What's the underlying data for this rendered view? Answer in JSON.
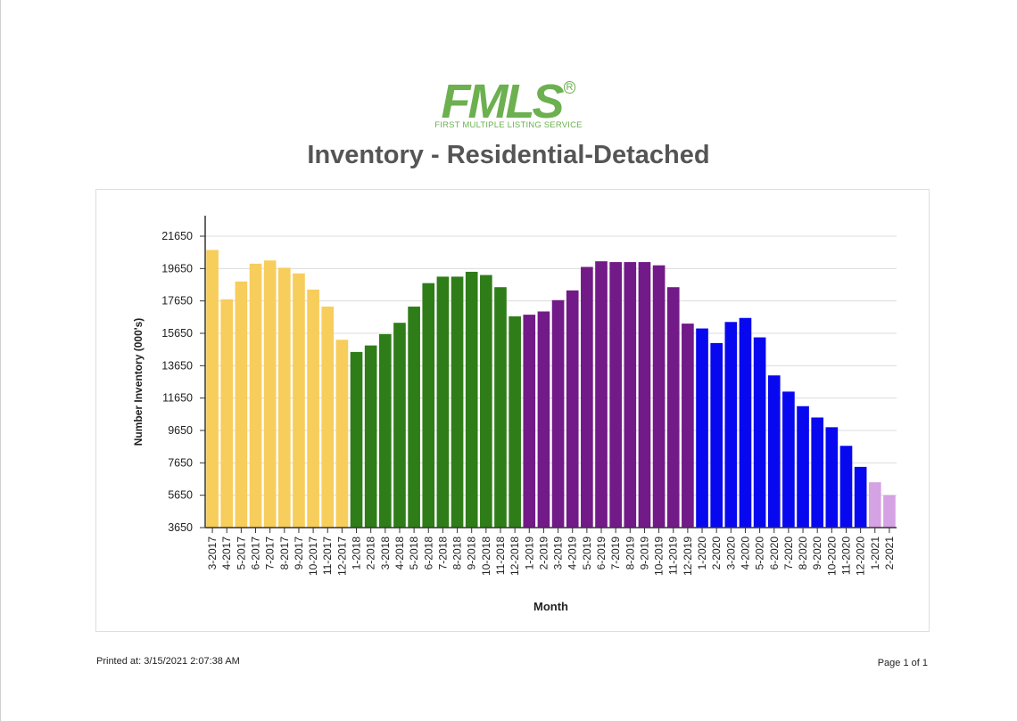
{
  "brand": {
    "logo_text": "FMLS",
    "logo_subtitle": "FIRST MULTIPLE LISTING SERVICE",
    "registered_mark": "R",
    "color": "#6cb04f"
  },
  "footer": {
    "printed_at": "Printed at:  3/15/2021 2:07:38 AM",
    "page": "Page 1 of 1"
  },
  "chart_data": {
    "type": "bar",
    "title": "Inventory - Residential-Detached",
    "xlabel": "Month",
    "ylabel": "Number Inventory (000's)",
    "ylim": [
      3650,
      21650
    ],
    "yticks": [
      3650,
      5650,
      7650,
      9650,
      11650,
      13650,
      15650,
      17650,
      19650,
      21650
    ],
    "grid": true,
    "categories": [
      "3-2017",
      "4-2017",
      "5-2017",
      "6-2017",
      "7-2017",
      "8-2017",
      "9-2017",
      "10-2017",
      "11-2017",
      "12-2017",
      "1-2018",
      "2-2018",
      "3-2018",
      "4-2018",
      "5-2018",
      "6-2018",
      "7-2018",
      "8-2018",
      "9-2018",
      "10-2018",
      "11-2018",
      "12-2018",
      "1-2019",
      "2-2019",
      "3-2019",
      "4-2019",
      "5-2019",
      "6-2019",
      "7-2019",
      "8-2019",
      "9-2019",
      "10-2019",
      "11-2019",
      "12-2019",
      "1-2020",
      "2-2020",
      "3-2020",
      "4-2020",
      "5-2020",
      "6-2020",
      "7-2020",
      "8-2020",
      "9-2020",
      "10-2020",
      "11-2020",
      "12-2020",
      "1-2021",
      "2-2021"
    ],
    "values": [
      20800,
      17750,
      18850,
      19950,
      20150,
      19700,
      19350,
      18350,
      17300,
      15250,
      14500,
      14900,
      15600,
      16300,
      17300,
      18750,
      19150,
      19150,
      19450,
      19250,
      18500,
      16700,
      16800,
      17000,
      17700,
      18300,
      19750,
      20100,
      20050,
      20050,
      20050,
      19850,
      18500,
      16250,
      15950,
      15050,
      16350,
      16600,
      15400,
      13050,
      12050,
      11150,
      10450,
      9850,
      8700,
      7400,
      6450,
      5650
    ],
    "colors": [
      "#f7cd5c",
      "#f7cd5c",
      "#f7cd5c",
      "#f7cd5c",
      "#f7cd5c",
      "#f7cd5c",
      "#f7cd5c",
      "#f7cd5c",
      "#f7cd5c",
      "#f7cd5c",
      "#2f7d18",
      "#2f7d18",
      "#2f7d18",
      "#2f7d18",
      "#2f7d18",
      "#2f7d18",
      "#2f7d18",
      "#2f7d18",
      "#2f7d18",
      "#2f7d18",
      "#2f7d18",
      "#2f7d18",
      "#721a87",
      "#721a87",
      "#721a87",
      "#721a87",
      "#721a87",
      "#721a87",
      "#721a87",
      "#721a87",
      "#721a87",
      "#721a87",
      "#721a87",
      "#721a87",
      "#0808f0",
      "#0808f0",
      "#0808f0",
      "#0808f0",
      "#0808f0",
      "#0808f0",
      "#0808f0",
      "#0808f0",
      "#0808f0",
      "#0808f0",
      "#0808f0",
      "#0808f0",
      "#d5a2e3",
      "#d5a2e3"
    ]
  }
}
